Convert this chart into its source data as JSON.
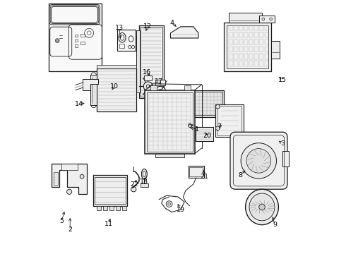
{
  "background_color": "#ffffff",
  "line_color": "#1a1a1a",
  "label_color": "#000000",
  "figsize": [
    4.9,
    3.6
  ],
  "dpi": 100,
  "ax_bg": "#ffffff",
  "parts_label_data": [
    [
      1,
      0.595,
      0.49,
      0.56,
      0.5
    ],
    [
      2,
      0.095,
      0.095,
      0.095,
      0.15
    ],
    [
      3,
      0.93,
      0.435,
      0.91,
      0.45
    ],
    [
      4,
      0.495,
      0.91,
      0.52,
      0.89
    ],
    [
      5,
      0.062,
      0.13,
      0.075,
      0.175
    ],
    [
      6,
      0.565,
      0.505,
      0.59,
      0.51
    ],
    [
      7,
      0.68,
      0.5,
      0.7,
      0.51
    ],
    [
      8,
      0.765,
      0.31,
      0.79,
      0.335
    ],
    [
      9,
      0.9,
      0.115,
      0.89,
      0.155
    ],
    [
      10,
      0.27,
      0.66,
      0.255,
      0.64
    ],
    [
      11,
      0.248,
      0.118,
      0.255,
      0.148
    ],
    [
      12,
      0.4,
      0.895,
      0.39,
      0.87
    ],
    [
      13,
      0.288,
      0.89,
      0.295,
      0.84
    ],
    [
      14,
      0.13,
      0.59,
      0.16,
      0.595
    ],
    [
      15,
      0.93,
      0.685,
      0.912,
      0.7
    ],
    [
      16,
      0.397,
      0.715,
      0.415,
      0.695
    ],
    [
      17,
      0.444,
      0.68,
      0.458,
      0.66
    ],
    [
      18,
      0.385,
      0.285,
      0.393,
      0.31
    ],
    [
      19,
      0.53,
      0.175,
      0.515,
      0.205
    ],
    [
      20,
      0.633,
      0.465,
      0.625,
      0.485
    ],
    [
      21,
      0.622,
      0.305,
      0.62,
      0.34
    ],
    [
      22,
      0.348,
      0.275,
      0.36,
      0.3
    ]
  ]
}
